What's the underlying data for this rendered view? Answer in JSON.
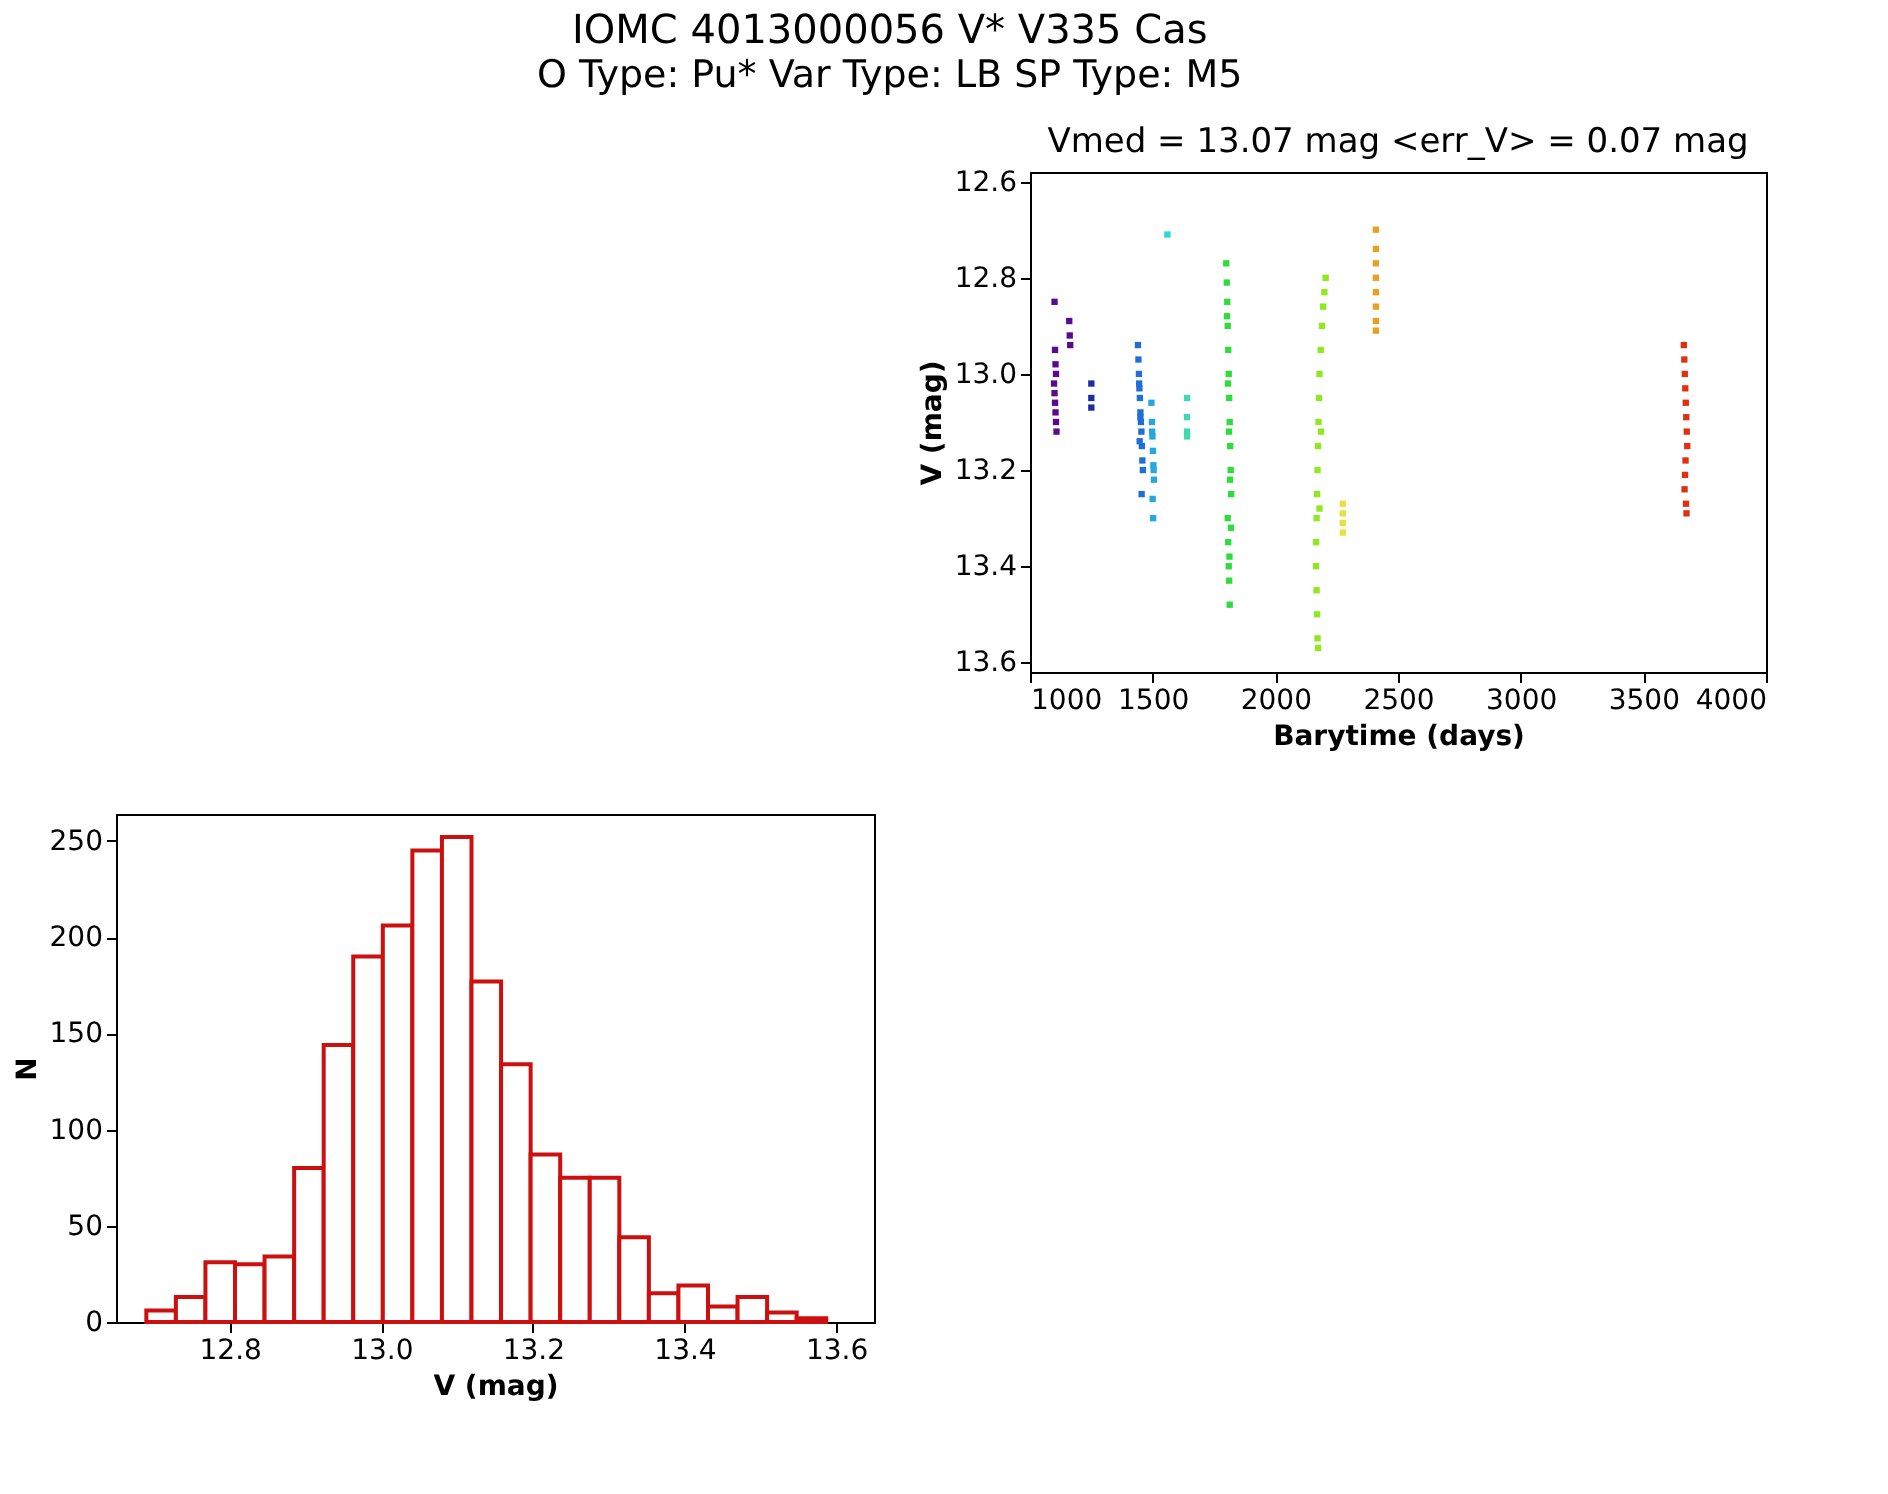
{
  "chart_data": [
    {
      "type": "other",
      "title": "IOMC 4013000056   V* V335 Cas",
      "subtitle": "O Type: Pu*  Var Type: LB  SP Type: M5"
    },
    {
      "type": "scatter",
      "title": "Vmed = 13.07 mag <err_V> = 0.07 mag",
      "xlabel": "Barytime (days)",
      "ylabel": "V (mag)",
      "marker": "square",
      "grid": false,
      "xlim": [
        1000,
        4000
      ],
      "xticks": [
        1000,
        1500,
        2000,
        2500,
        3000,
        3500,
        4000
      ],
      "ylim": [
        13.62,
        12.58
      ],
      "yticks": [
        12.6,
        12.8,
        {
          "value": 13,
          "label": "13.0"
        },
        13.2,
        13.4,
        13.6
      ],
      "series": [
        {
          "color": "#5a0a8c",
          "x": [
            1100,
            1102,
            1104,
            1106,
            1098,
            1100,
            1102,
            1104,
            1106,
            1108,
            1160,
            1162,
            1164
          ],
          "values": [
            12.85,
            12.95,
            12.98,
            13.0,
            13.02,
            13.04,
            13.06,
            13.08,
            13.1,
            13.12,
            12.89,
            12.92,
            12.94
          ]
        },
        {
          "color": "#1a2fa0",
          "x": [
            1250,
            1250,
            1250
          ],
          "values": [
            13.02,
            13.05,
            13.07
          ]
        },
        {
          "color": "#1f6fd6",
          "x": [
            1440,
            1442,
            1444,
            1446,
            1448,
            1450,
            1452,
            1454,
            1456,
            1458,
            1460,
            1455,
            1445,
            1450,
            1447
          ],
          "values": [
            12.94,
            12.97,
            13.0,
            13.03,
            13.05,
            13.08,
            13.1,
            13.12,
            13.15,
            13.18,
            13.2,
            13.25,
            13.02,
            13.09,
            13.14
          ]
        },
        {
          "color": "#25a8e0",
          "x": [
            1495,
            1497,
            1499,
            1501,
            1503,
            1505,
            1500,
            1502,
            1498,
            1504
          ],
          "values": [
            13.06,
            13.1,
            13.13,
            13.16,
            13.19,
            13.22,
            13.26,
            13.3,
            13.12,
            13.2
          ]
        },
        {
          "color": "#2ad8d8",
          "x": [
            1560
          ],
          "values": [
            12.71
          ]
        },
        {
          "color": "#40d8b0",
          "x": [
            1640,
            1640,
            1640,
            1640
          ],
          "values": [
            13.05,
            13.09,
            13.12,
            13.13
          ]
        },
        {
          "color": "#2edc3c",
          "x": [
            1800,
            1802,
            1804,
            1806,
            1808,
            1810,
            1812,
            1814,
            1816,
            1818,
            1820,
            1806,
            1808,
            1810,
            1812,
            1814,
            1803,
            1807,
            1811,
            1815,
            1819,
            1813
          ],
          "values": [
            12.77,
            12.81,
            12.85,
            12.9,
            12.95,
            13.0,
            13.05,
            13.1,
            13.15,
            13.2,
            13.25,
            13.3,
            13.35,
            13.4,
            13.43,
            13.48,
            12.88,
            13.02,
            13.12,
            13.22,
            13.32,
            13.38
          ]
        },
        {
          "color": "#90e81e",
          "x": [
            2205,
            2200,
            2195,
            2190,
            2185,
            2180,
            2178,
            2176,
            2174,
            2172,
            2170,
            2168,
            2166,
            2166,
            2168,
            2170,
            2172,
            2174,
            2180,
            2186
          ],
          "values": [
            12.8,
            12.83,
            12.86,
            12.9,
            12.95,
            13.0,
            13.05,
            13.1,
            13.15,
            13.2,
            13.25,
            13.3,
            13.35,
            13.4,
            13.45,
            13.5,
            13.55,
            13.57,
            13.28,
            13.12
          ]
        },
        {
          "color": "#e8e040",
          "x": [
            2275,
            2275,
            2275,
            2275
          ],
          "values": [
            13.27,
            13.29,
            13.31,
            13.33
          ]
        },
        {
          "color": "#e8a020",
          "x": [
            2410,
            2410,
            2410,
            2410,
            2410,
            2410,
            2410,
            2410
          ],
          "values": [
            12.7,
            12.74,
            12.77,
            12.8,
            12.83,
            12.86,
            12.89,
            12.91
          ]
        },
        {
          "color": "#e03010",
          "x": [
            3665,
            3667,
            3669,
            3671,
            3673,
            3675,
            3677,
            3679,
            3672,
            3670,
            3668,
            3674,
            3676
          ],
          "values": [
            12.94,
            12.97,
            13.0,
            13.03,
            13.06,
            13.09,
            13.12,
            13.15,
            13.18,
            13.21,
            13.24,
            13.27,
            13.29
          ]
        }
      ]
    },
    {
      "type": "histogram",
      "xlabel": "V (mag)",
      "ylabel": "N",
      "color": "#cc1010",
      "grid": false,
      "bins": [
        12.69,
        12.729,
        12.768,
        12.807,
        12.846,
        12.885,
        12.924,
        12.963,
        13.002,
        13.041,
        13.08,
        13.119,
        13.158,
        13.197,
        13.236,
        13.275,
        13.314,
        13.353,
        13.392,
        13.431,
        13.47,
        13.509,
        13.548,
        13.587
      ],
      "values": [
        6,
        13,
        31,
        30,
        34,
        80,
        144,
        190,
        206,
        245,
        252,
        177,
        134,
        87,
        75,
        75,
        44,
        15,
        19,
        8,
        13,
        5,
        2
      ],
      "xlim": [
        12.65,
        13.65
      ],
      "xticks": [
        12.8,
        {
          "value": 13,
          "label": "13.0"
        },
        13.2,
        13.4,
        13.6
      ],
      "ylim": [
        0,
        264
      ],
      "yticks": [
        0,
        50,
        100,
        150,
        200,
        250
      ]
    }
  ]
}
